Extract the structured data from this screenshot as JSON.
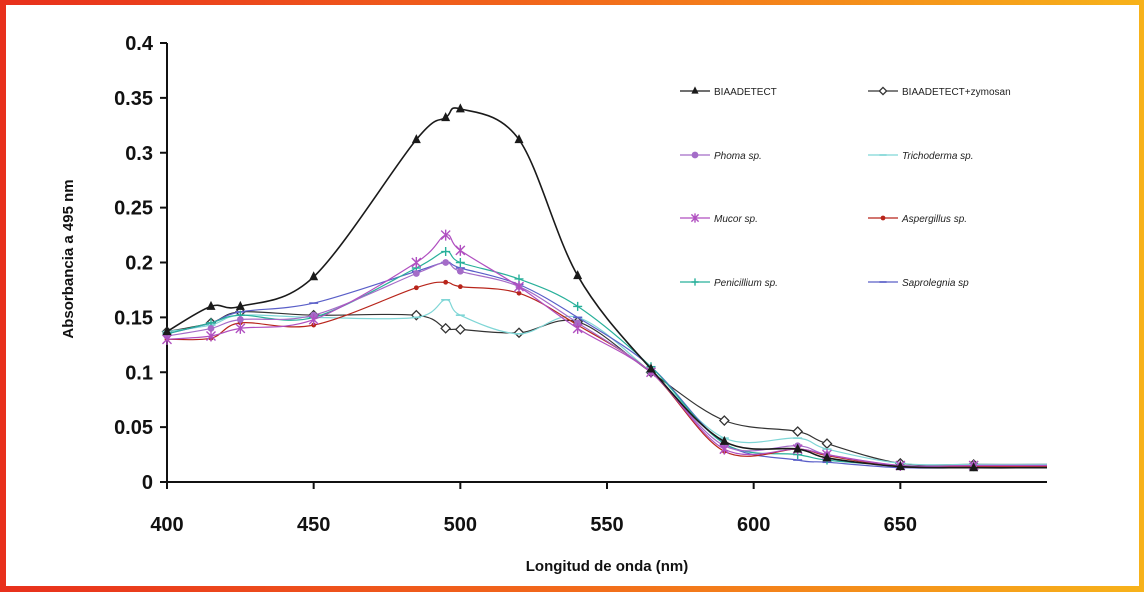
{
  "chart_data": {
    "type": "line",
    "title": "",
    "xlabel": "Longitud de onda (nm)",
    "ylabel": "Absorbancia a 495 nm",
    "xlim": [
      400,
      700
    ],
    "ylim": [
      0,
      0.4
    ],
    "xticks": [
      "400",
      "450",
      "500",
      "550",
      "600",
      "650"
    ],
    "yticks": [
      "0",
      "0.05",
      "0.1",
      "0.15",
      "0.2",
      "0.25",
      "0.3",
      "0.35",
      "0.4"
    ],
    "grid": false,
    "legend_position": "top-right",
    "series": [
      {
        "name": "BIAADETECT",
        "italic": false,
        "color": "#1a1a1a",
        "marker": "triangle",
        "x": [
          400,
          415,
          425,
          450,
          485,
          495,
          500,
          520,
          540,
          565,
          590,
          615,
          625,
          650,
          675,
          700
        ],
        "y": [
          0.137,
          0.16,
          0.16,
          0.187,
          0.312,
          0.332,
          0.34,
          0.312,
          0.188,
          0.103,
          0.037,
          0.03,
          0.022,
          0.014,
          0.013,
          0.013
        ]
      },
      {
        "name": "BIAADETECT+zymosan",
        "italic": false,
        "color": "#333333",
        "marker": "open-diamond",
        "x": [
          400,
          415,
          425,
          450,
          485,
          495,
          500,
          520,
          540,
          565,
          590,
          615,
          625,
          650,
          675,
          700
        ],
        "y": [
          0.137,
          0.145,
          0.155,
          0.152,
          0.152,
          0.14,
          0.139,
          0.136,
          0.146,
          0.1,
          0.056,
          0.046,
          0.035,
          0.017,
          0.016,
          0.016
        ]
      },
      {
        "name": "Phoma sp.",
        "italic": true,
        "color": "#a46cc8",
        "marker": "circle",
        "x": [
          400,
          415,
          425,
          450,
          485,
          495,
          500,
          520,
          540,
          565,
          590,
          615,
          625,
          650,
          675,
          700
        ],
        "y": [
          0.133,
          0.14,
          0.148,
          0.152,
          0.19,
          0.2,
          0.192,
          0.178,
          0.145,
          0.1,
          0.033,
          0.033,
          0.025,
          0.015,
          0.015,
          0.015
        ]
      },
      {
        "name": "Trichoderma sp.",
        "italic": true,
        "color": "#7fd6d6",
        "marker": "dash",
        "x": [
          400,
          415,
          425,
          450,
          485,
          495,
          500,
          520,
          540,
          565,
          590,
          615,
          625,
          650,
          675,
          700
        ],
        "y": [
          0.137,
          0.143,
          0.152,
          0.15,
          0.15,
          0.166,
          0.152,
          0.135,
          0.15,
          0.1,
          0.04,
          0.04,
          0.03,
          0.017,
          0.016,
          0.016
        ]
      },
      {
        "name": "Mucor sp.",
        "italic": true,
        "color": "#b04fc0",
        "marker": "star",
        "x": [
          400,
          415,
          425,
          450,
          485,
          495,
          500,
          520,
          540,
          565,
          590,
          615,
          625,
          650,
          675,
          700
        ],
        "y": [
          0.13,
          0.133,
          0.14,
          0.148,
          0.2,
          0.225,
          0.211,
          0.178,
          0.14,
          0.1,
          0.03,
          0.03,
          0.025,
          0.015,
          0.015,
          0.015
        ]
      },
      {
        "name": "Aspergillus sp.",
        "italic": true,
        "color": "#b8251b",
        "marker": "small-circle",
        "x": [
          400,
          415,
          425,
          450,
          485,
          495,
          500,
          520,
          540,
          565,
          590,
          615,
          625,
          650,
          675,
          700
        ],
        "y": [
          0.13,
          0.131,
          0.145,
          0.143,
          0.177,
          0.182,
          0.178,
          0.172,
          0.143,
          0.1,
          0.028,
          0.03,
          0.024,
          0.014,
          0.014,
          0.014
        ]
      },
      {
        "name": "Penicillium sp.",
        "italic": true,
        "color": "#28b09a",
        "marker": "plus",
        "x": [
          400,
          415,
          425,
          450,
          485,
          495,
          500,
          520,
          540,
          565,
          590,
          615,
          625,
          650,
          675,
          700
        ],
        "y": [
          0.135,
          0.145,
          0.152,
          0.15,
          0.195,
          0.21,
          0.2,
          0.185,
          0.16,
          0.105,
          0.035,
          0.025,
          0.02,
          0.015,
          0.014,
          0.014
        ]
      },
      {
        "name": "Saprolegnia sp",
        "italic": true,
        "color": "#5a5fc8",
        "marker": "dash",
        "x": [
          400,
          415,
          425,
          450,
          485,
          495,
          500,
          520,
          540,
          565,
          590,
          615,
          625,
          650,
          675,
          700
        ],
        "y": [
          0.135,
          0.145,
          0.155,
          0.163,
          0.192,
          0.2,
          0.195,
          0.18,
          0.15,
          0.105,
          0.035,
          0.02,
          0.018,
          0.013,
          0.013,
          0.013
        ]
      }
    ]
  }
}
